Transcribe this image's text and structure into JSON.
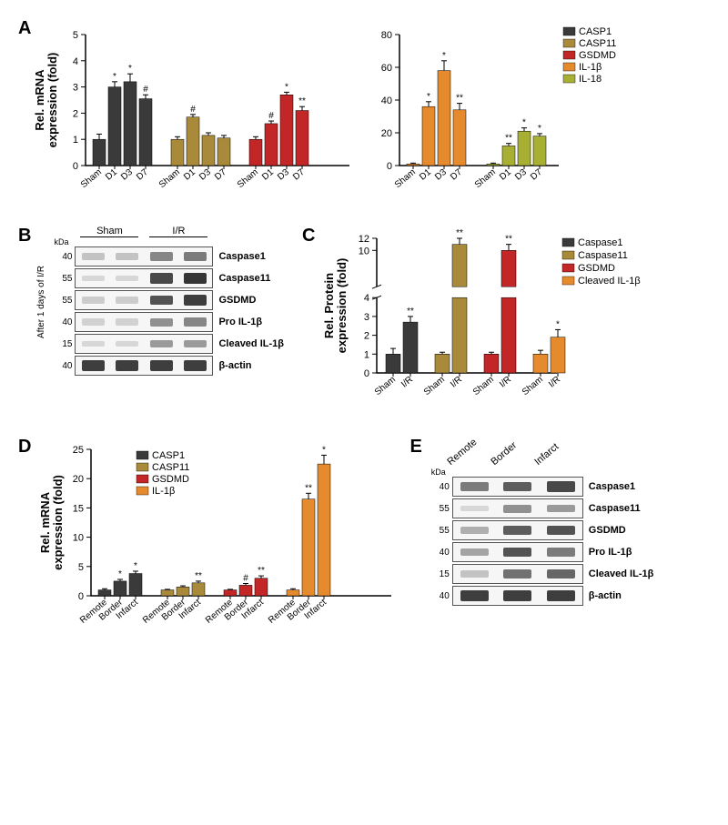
{
  "colors": {
    "CASP1": "#3a3a3a",
    "CASP11": "#a88a3a",
    "GSDMD": "#c22626",
    "IL1b": "#e68a2e",
    "IL18": "#a8b034",
    "CleavedIL1b": "#e68a2e",
    "axis": "#000000",
    "grid": "#ffffff",
    "bg": "#ffffff"
  },
  "panelA": {
    "ylabel": "Rel. mRNA\nexpression (fold)",
    "left": {
      "ylim": [
        0,
        5
      ],
      "ytick_step": 1,
      "groups": [
        {
          "series": "CASP1",
          "cats": [
            "Sham",
            "D1",
            "D3",
            "D7"
          ],
          "vals": [
            1.0,
            3.0,
            3.2,
            2.55
          ],
          "err": [
            0.2,
            0.2,
            0.3,
            0.15
          ],
          "sig": [
            "",
            "*",
            "*",
            "#"
          ]
        },
        {
          "series": "CASP11",
          "cats": [
            "Sham",
            "D1",
            "D3",
            "D7"
          ],
          "vals": [
            1.0,
            1.85,
            1.15,
            1.05
          ],
          "err": [
            0.1,
            0.1,
            0.1,
            0.1
          ],
          "sig": [
            "",
            "#",
            "",
            ""
          ]
        },
        {
          "series": "GSDMD",
          "cats": [
            "Sham",
            "D1",
            "D3",
            "D7"
          ],
          "vals": [
            1.0,
            1.6,
            2.7,
            2.1
          ],
          "err": [
            0.1,
            0.1,
            0.1,
            0.15
          ],
          "sig": [
            "",
            "#",
            "*",
            "**"
          ]
        }
      ]
    },
    "right": {
      "ylim": [
        0,
        80
      ],
      "ytick_step": 20,
      "legend": [
        "CASP1",
        "CASP11",
        "GSDMD",
        "IL-1β",
        "IL-18"
      ],
      "groups": [
        {
          "series": "IL1b",
          "cats": [
            "Sham",
            "D1",
            "D3",
            "D7"
          ],
          "vals": [
            1,
            36,
            58,
            34
          ],
          "err": [
            0.5,
            3,
            6,
            4
          ],
          "sig": [
            "",
            "*",
            "*",
            "**"
          ]
        },
        {
          "series": "IL18",
          "cats": [
            "Sham",
            "D1",
            "D3",
            "D7"
          ],
          "vals": [
            1,
            12,
            21,
            18
          ],
          "err": [
            0.5,
            1.5,
            2,
            1.5
          ],
          "sig": [
            "",
            "**",
            "*",
            "*"
          ]
        }
      ]
    }
  },
  "panelB": {
    "sidelabel": "After 1 days of I/R",
    "headers": [
      "Sham",
      "I/R"
    ],
    "lanes": 4,
    "rows": [
      {
        "kda": "40",
        "label": "Caspase1",
        "intens": [
          0.25,
          0.25,
          0.55,
          0.6
        ]
      },
      {
        "kda": "55",
        "label": "Caspase11",
        "intens": [
          0.15,
          0.15,
          0.85,
          0.95
        ]
      },
      {
        "kda": "55",
        "label": "GSDMD",
        "intens": [
          0.2,
          0.2,
          0.8,
          0.9
        ]
      },
      {
        "kda": "40",
        "label": "Pro IL-1β",
        "intens": [
          0.18,
          0.18,
          0.5,
          0.55
        ]
      },
      {
        "kda": "15",
        "label": "Cleaved IL-1β",
        "intens": [
          0.15,
          0.15,
          0.45,
          0.45
        ]
      },
      {
        "kda": "40",
        "label": "β-actin",
        "intens": [
          0.9,
          0.9,
          0.9,
          0.9
        ]
      }
    ]
  },
  "panelC": {
    "ylabel": "Rel. Protein\nexpression (fold)",
    "legend": [
      {
        "key": "Caspase1",
        "color": "CASP1"
      },
      {
        "key": "Caspase11",
        "color": "CASP11"
      },
      {
        "key": "GSDMD",
        "color": "GSDMD"
      },
      {
        "key": "Cleaved IL-1β",
        "color": "CleavedIL1b"
      }
    ],
    "cats": [
      "Sham",
      "I/R"
    ],
    "upper_ylim": [
      4,
      12
    ],
    "upper_ystep": 2,
    "lower_ylim": [
      0,
      4
    ],
    "lower_ystep": 1,
    "groups": [
      {
        "series": "CASP1",
        "vals": [
          1.0,
          2.7
        ],
        "err": [
          0.3,
          0.3
        ],
        "sig": [
          "",
          "**"
        ]
      },
      {
        "series": "CASP11",
        "vals": [
          1.0,
          11
        ],
        "err": [
          0.1,
          1.0
        ],
        "sig": [
          "",
          "**"
        ]
      },
      {
        "series": "GSDMD",
        "vals": [
          1.0,
          10
        ],
        "err": [
          0.1,
          1.0
        ],
        "sig": [
          "",
          "**"
        ]
      },
      {
        "series": "CleavedIL1b",
        "vals": [
          1.0,
          1.9
        ],
        "err": [
          0.2,
          0.4
        ],
        "sig": [
          "",
          "*"
        ]
      }
    ]
  },
  "panelD": {
    "ylabel": "Rel. mRNA\nexpression (fold)",
    "ylim": [
      0,
      25
    ],
    "ytick_step": 5,
    "legend": [
      "CASP1",
      "CASP11",
      "GSDMD",
      "IL-1β"
    ],
    "cats": [
      "Remote",
      "Border",
      "Infarct"
    ],
    "groups": [
      {
        "series": "CASP1",
        "vals": [
          1,
          2.5,
          3.8
        ],
        "err": [
          0.2,
          0.3,
          0.4
        ],
        "sig": [
          "",
          "*",
          "*"
        ]
      },
      {
        "series": "CASP11",
        "vals": [
          1,
          1.5,
          2.2
        ],
        "err": [
          0.1,
          0.2,
          0.3
        ],
        "sig": [
          "",
          "",
          "**"
        ]
      },
      {
        "series": "GSDMD",
        "vals": [
          1,
          1.8,
          3.0
        ],
        "err": [
          0.1,
          0.3,
          0.4
        ],
        "sig": [
          "",
          "#",
          "**"
        ]
      },
      {
        "series": "IL1b",
        "vals": [
          1,
          16.5,
          22.5
        ],
        "err": [
          0.2,
          1.0,
          1.5
        ],
        "sig": [
          "",
          "**",
          "*"
        ]
      }
    ]
  },
  "panelE": {
    "headers": [
      "Remote",
      "Border",
      "Infarct"
    ],
    "lanes": 3,
    "rows": [
      {
        "kda": "40",
        "label": "Caspase1",
        "intens": [
          0.6,
          0.75,
          0.85
        ]
      },
      {
        "kda": "55",
        "label": "Caspase11",
        "intens": [
          0.15,
          0.5,
          0.45
        ]
      },
      {
        "kda": "55",
        "label": "GSDMD",
        "intens": [
          0.35,
          0.75,
          0.8
        ]
      },
      {
        "kda": "40",
        "label": "Pro IL-1β",
        "intens": [
          0.4,
          0.8,
          0.6
        ]
      },
      {
        "kda": "15",
        "label": "Cleaved IL-1β",
        "intens": [
          0.25,
          0.65,
          0.7
        ]
      },
      {
        "kda": "40",
        "label": "β-actin",
        "intens": [
          0.9,
          0.9,
          0.9
        ]
      }
    ]
  }
}
